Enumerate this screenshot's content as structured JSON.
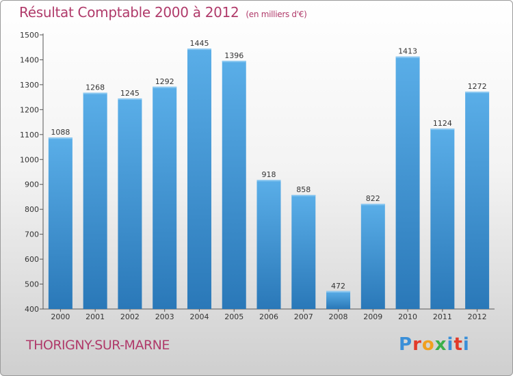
{
  "header": {
    "title": "Résultat Comptable 2000 à 2012",
    "unit": "(en milliers d'€)"
  },
  "footer": {
    "commune": "THORIGNY-SUR-MARNE",
    "logo_text": "Proxiti",
    "logo_letters": [
      "P",
      "r",
      "o",
      "x",
      "i",
      "t",
      "i"
    ]
  },
  "colors": {
    "title": "#b03a6a",
    "bar_light": "#5aaee8",
    "bar_dark": "#2a78b8",
    "axis": "#555555"
  },
  "chart_data": {
    "type": "bar",
    "title": "Résultat Comptable 2000 à 2012",
    "subtitle": "(en milliers d'€)",
    "xlabel": "",
    "ylabel": "",
    "categories": [
      "2000",
      "2001",
      "2002",
      "2003",
      "2004",
      "2005",
      "2006",
      "2007",
      "2008",
      "2009",
      "2010",
      "2011",
      "2012"
    ],
    "values": [
      1088,
      1268,
      1245,
      1292,
      1445,
      1396,
      918,
      858,
      472,
      822,
      1413,
      1124,
      1272
    ],
    "ylim": [
      400,
      1500
    ],
    "yticks": [
      400,
      500,
      600,
      700,
      800,
      900,
      1000,
      1100,
      1200,
      1300,
      1400,
      1500
    ],
    "grid": false,
    "data_labels": true
  }
}
